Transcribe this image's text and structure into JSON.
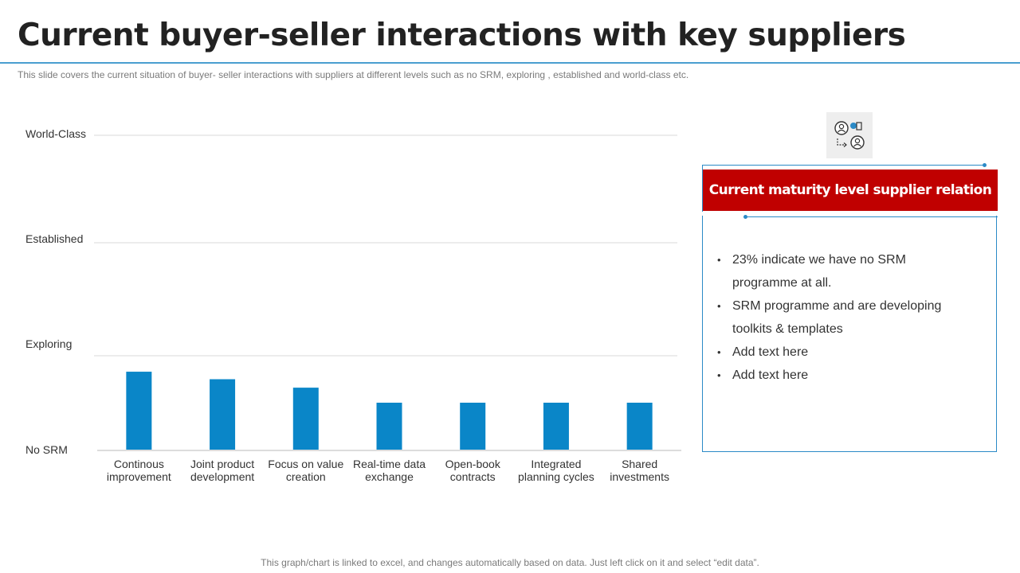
{
  "slide": {
    "title": "Current buyer-seller interactions with key suppliers",
    "subtitle": "This slide covers  the current situation of buyer- seller interactions with suppliers at different  levels such as no SRM, exploring , established and world-class etc.",
    "footer": "This graph/chart is linked to excel, and changes automatically based on data. Just left click on it and select “edit data”."
  },
  "chart_data": {
    "type": "bar",
    "title": "",
    "xlabel": "",
    "ylabel": "",
    "y_levels": [
      "No SRM",
      "Exploring",
      "Established",
      "World-Class"
    ],
    "ylim": [
      0,
      3
    ],
    "grid": true,
    "categories": [
      [
        "Continous",
        "improvement"
      ],
      [
        "Joint product",
        "development"
      ],
      [
        "Focus on value",
        "creation"
      ],
      [
        "Real-time data",
        "exchange"
      ],
      [
        "Open-book",
        "contracts"
      ],
      [
        "Integrated",
        "planning cycles"
      ],
      [
        "Shared",
        "investments"
      ]
    ],
    "values": [
      0.83,
      0.75,
      0.66,
      0.5,
      0.5,
      0.5,
      0.5
    ],
    "bar_color": "#0a86c8"
  },
  "panel": {
    "icon": "buyer-seller-exchange-icon",
    "header": "Current maturity level supplier relation",
    "header_color": "#c00000",
    "border_color": "#2b8ac7",
    "bullets": [
      [
        "23% indicate we have no SRM",
        "programme at all."
      ],
      [
        "SRM programme and are developing",
        "toolkits & templates"
      ],
      [
        "Add text here"
      ],
      [
        "Add text here"
      ]
    ]
  }
}
